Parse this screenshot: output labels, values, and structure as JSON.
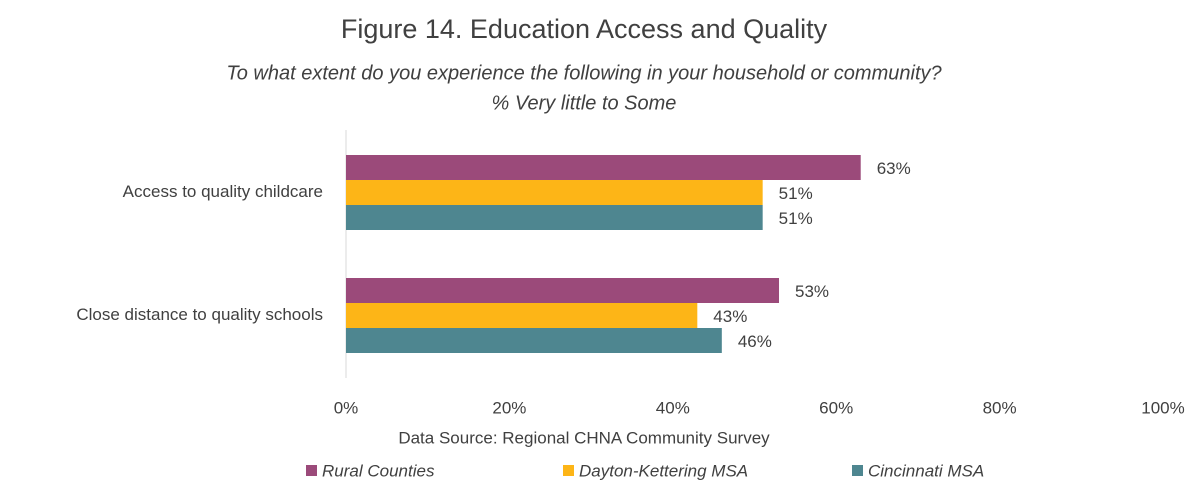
{
  "chart_data": {
    "type": "hbar",
    "title": "Figure 14. Education Access and Quality",
    "subtitle": [
      "To what extent do you experience the following in your household or community?",
      "% Very little to Some"
    ],
    "categories": [
      "Access to quality childcare",
      "Close distance to quality schools"
    ],
    "series": [
      {
        "name": "Rural Counties",
        "color": "#9b4a7a",
        "values": [
          63,
          53
        ],
        "value_labels": [
          "63%",
          "53%"
        ]
      },
      {
        "name": "Dayton-Kettering MSA",
        "color": "#fdb517",
        "values": [
          51,
          43
        ],
        "value_labels": [
          "51%",
          "43%"
        ]
      },
      {
        "name": "Cincinnati MSA",
        "color": "#4e8690",
        "values": [
          51,
          46
        ],
        "value_labels": [
          "51%",
          "46%"
        ]
      }
    ],
    "xlim": [
      0,
      100
    ],
    "xticks": [
      {
        "value": 0,
        "label": "0%"
      },
      {
        "value": 20,
        "label": "20%"
      },
      {
        "value": 40,
        "label": "40%"
      },
      {
        "value": 60,
        "label": "60%"
      },
      {
        "value": 80,
        "label": "80%"
      },
      {
        "value": 100,
        "label": "100%"
      }
    ],
    "xlabel": "Data Source: Regional CHNA Community Survey",
    "grid": false,
    "legend": "bottom"
  }
}
